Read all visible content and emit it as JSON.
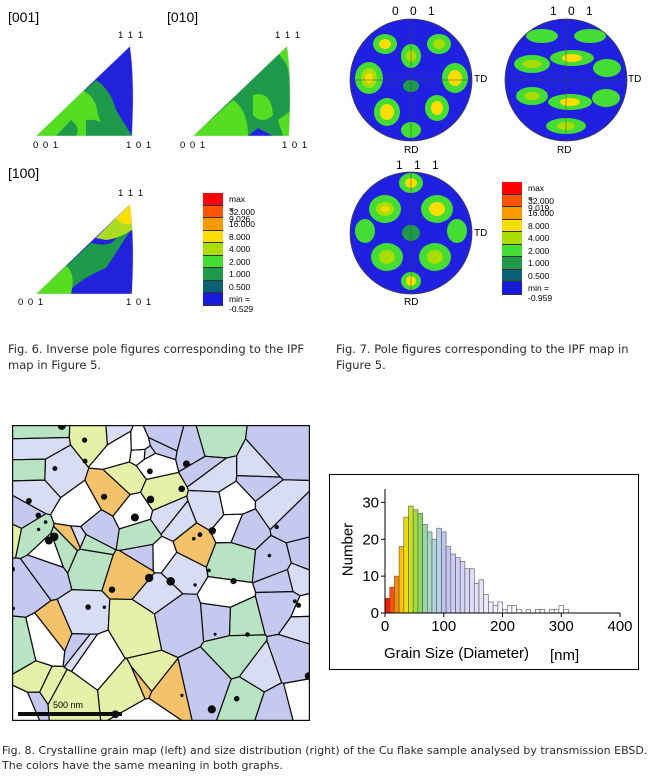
{
  "ipf": {
    "labels": {
      "dir001": "[001]",
      "dir010": "[010]",
      "dir100": "[100]"
    },
    "corners": {
      "c111": "1 1 1",
      "c001": "0 0 1",
      "c101": "1 0 1"
    },
    "legend": [
      "max = 9.026",
      "32.000",
      "16.000",
      "8.000",
      "4.000",
      "2.000",
      "1.000",
      "0.500",
      "min = -0.529"
    ],
    "caption": "Fig.  6. Inverse pole figures corresponding to the IPF map in Figure 5."
  },
  "pole_figures": {
    "titles": {
      "p001": "0 0 1",
      "p101": "1 0 1",
      "p111": "1 1 1"
    },
    "td": "TD",
    "rd": "RD",
    "legend": [
      "max = 9.019",
      "32.000",
      "16.000",
      "8.000",
      "4.000",
      "2.000",
      "1.000",
      "0.500",
      "min = -0.959"
    ],
    "caption": "Fig.  7.  Pole figures corresponding to the IPF map in Figure 5."
  },
  "legend_colors": [
    "#ff0000",
    "#ff5500",
    "#ff9900",
    "#ffdd00",
    "#aadd00",
    "#44dd33",
    "#1f9a4a",
    "#0a5f74",
    "#1a1adc"
  ],
  "grain_map": {
    "scale_label": "500 nm",
    "colors": {
      "large": "#d8dcf4",
      "medium": "#c5c9ef",
      "mid": "#b8e4c4",
      "small": "#e6f0a8",
      "tiny": "#f3c26a",
      "boundary": "#0c0c0c"
    }
  },
  "histogram": {
    "xlabel": "Grain Size (Diameter)",
    "xunit": "[nm]",
    "ylabel": "Number"
  },
  "chart_data": {
    "type": "bar",
    "xlabel": "Grain Size (Diameter) [nm]",
    "ylabel": "Number",
    "xlim": [
      0,
      400
    ],
    "ylim": [
      0,
      32
    ],
    "xticks": [
      "0",
      "100",
      "200",
      "300",
      "400"
    ],
    "yticks": [
      "0",
      "10",
      "20",
      "30"
    ],
    "bin_width": 8,
    "bin_starts": [
      0,
      8,
      16,
      24,
      32,
      40,
      48,
      56,
      64,
      72,
      80,
      88,
      96,
      104,
      112,
      120,
      128,
      136,
      144,
      152,
      160,
      168,
      176,
      184,
      192,
      200,
      208,
      216,
      224,
      232,
      240,
      248,
      256,
      264,
      272,
      280,
      288,
      296,
      304,
      312
    ],
    "values": [
      4,
      7,
      10,
      18,
      26,
      29,
      28,
      27,
      24,
      22,
      20,
      23,
      22,
      18,
      16,
      15,
      14,
      12,
      12,
      8,
      9,
      5,
      3,
      2,
      3,
      1,
      2,
      2,
      1,
      0,
      1,
      0,
      1,
      1,
      0,
      1,
      1,
      2,
      1,
      0
    ],
    "colors": [
      "#ff1a00",
      "#ff5200",
      "#ff8c00",
      "#ffc000",
      "#f0dd00",
      "#c9e21a",
      "#a2dd3a",
      "#8ad862",
      "#9bd6a4",
      "#a8d9c4",
      "#b3d6da",
      "#b8cfe8",
      "#c0c4f0",
      "#c6c6f2",
      "#cccbf4",
      "#d2d0f5",
      "#d6d4f6",
      "#dad8f7",
      "#dedcf8",
      "#e2e1f9",
      "#e6e5fa",
      "#eaeafb",
      "#eeedfc",
      "#f1f1fd",
      "#f4f4fd",
      "#f6f6fe",
      "#f8f8fe",
      "#fafafe",
      "#fbfbff",
      "#fcfcff",
      "#fdfdff",
      "#fdfdff",
      "#fefeff",
      "#fefeff",
      "#ffffff",
      "#ffffff",
      "#ffffff",
      "#ffffff",
      "#ffffff",
      "#ffffff"
    ]
  },
  "caption8": "Fig.  8. Crystalline grain map (left) and size distribution (right) of the Cu flake sample analysed by transmission EBSD. The colors have the same meaning in both graphs."
}
